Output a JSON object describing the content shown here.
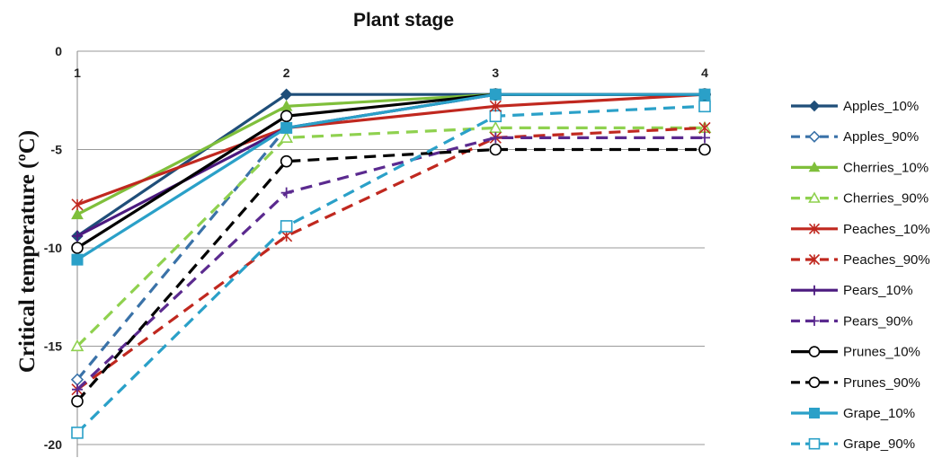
{
  "chart_data": {
    "type": "line",
    "title": "Plant stage",
    "xlabel": "",
    "ylabel": "Critical temperature (ºC)",
    "x": [
      1,
      2,
      3,
      4
    ],
    "x_tick_labels": [
      "1",
      "2",
      "3",
      "4"
    ],
    "y_tick_labels": [
      "0",
      "-5",
      "-10",
      "-15",
      "-20"
    ],
    "ylim": [
      -20,
      0
    ],
    "grid": "horizontal",
    "legend_position": "right",
    "series": [
      {
        "name": "Apples_10%",
        "values": [
          -9.4,
          -2.2,
          -2.2,
          -2.2
        ],
        "color": "#1f4e79",
        "dash": "solid",
        "marker": "diamond-filled"
      },
      {
        "name": "Apples_90%",
        "values": [
          -16.7,
          -3.9,
          -2.2,
          -2.2
        ],
        "color": "#3a72a8",
        "dash": "dashed",
        "marker": "diamond-open"
      },
      {
        "name": "Cherries_10%",
        "values": [
          -8.3,
          -2.8,
          -2.2,
          -2.2
        ],
        "color": "#7fbf3b",
        "dash": "solid",
        "marker": "triangle-filled"
      },
      {
        "name": "Cherries_90%",
        "values": [
          -15.0,
          -4.4,
          -3.9,
          -3.9
        ],
        "color": "#8fd14f",
        "dash": "dashed",
        "marker": "triangle-open"
      },
      {
        "name": "Peaches_10%",
        "values": [
          -7.8,
          -3.9,
          -2.8,
          -2.2
        ],
        "color": "#c0281f",
        "dash": "solid",
        "marker": "star"
      },
      {
        "name": "Peaches_90%",
        "values": [
          -17.2,
          -9.4,
          -4.4,
          -3.9
        ],
        "color": "#c0281f",
        "dash": "dashed",
        "marker": "star"
      },
      {
        "name": "Pears_10%",
        "values": [
          -9.4,
          -3.9,
          -2.2,
          -2.2
        ],
        "color": "#4b1a7f",
        "dash": "solid",
        "marker": "plus"
      },
      {
        "name": "Pears_90%",
        "values": [
          -17.2,
          -7.2,
          -4.4,
          -4.4
        ],
        "color": "#5b2a8f",
        "dash": "dashed",
        "marker": "plus"
      },
      {
        "name": "Prunes_10%",
        "values": [
          -10.0,
          -3.3,
          -2.2,
          -2.2
        ],
        "color": "#000000",
        "dash": "solid",
        "marker": "circle-open"
      },
      {
        "name": "Prunes_90%",
        "values": [
          -17.8,
          -5.6,
          -5.0,
          -5.0
        ],
        "color": "#000000",
        "dash": "dashed",
        "marker": "circle-open"
      },
      {
        "name": "Grape_10%",
        "values": [
          -10.6,
          -3.9,
          -2.2,
          -2.2
        ],
        "color": "#2aa0c8",
        "dash": "solid",
        "marker": "square-filled"
      },
      {
        "name": "Grape_90%",
        "values": [
          -19.4,
          -8.9,
          -3.3,
          -2.8
        ],
        "color": "#2aa0c8",
        "dash": "dashed",
        "marker": "square-open"
      }
    ]
  }
}
